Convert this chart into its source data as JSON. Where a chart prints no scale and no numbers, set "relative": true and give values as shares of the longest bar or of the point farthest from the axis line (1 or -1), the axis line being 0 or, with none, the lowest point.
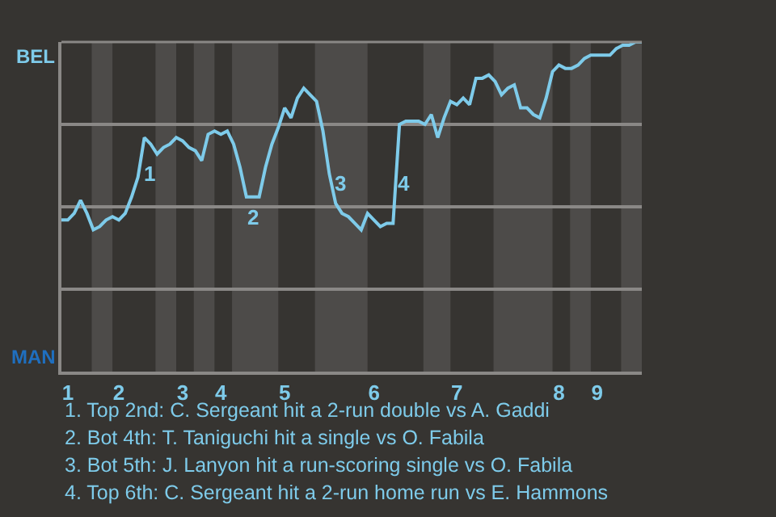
{
  "chart_data": {
    "type": "line",
    "categories": [
      null,
      "1",
      null,
      null,
      null,
      null,
      null,
      null,
      null,
      "2",
      null,
      null,
      null,
      null,
      null,
      null,
      null,
      null,
      null,
      "3",
      null,
      null,
      null,
      null,
      null,
      "4",
      null,
      null,
      null,
      null,
      null,
      null,
      null,
      null,
      null,
      "5",
      null,
      null,
      null,
      null,
      null,
      null,
      null,
      null,
      null,
      null,
      null,
      null,
      null,
      "6",
      null,
      null,
      null,
      null,
      null,
      null,
      null,
      null,
      null,
      null,
      null,
      null,
      "7",
      null,
      null,
      null,
      null,
      null,
      null,
      null,
      null,
      null,
      null,
      null,
      null,
      null,
      null,
      null,
      "8",
      null,
      null,
      null,
      null,
      null,
      "9",
      null,
      null,
      null,
      null,
      null,
      null,
      null
    ],
    "relative": true,
    "series": [
      {
        "color": "#7ecbea",
        "values": [
          0.46,
          0.46,
          0.48,
          0.52,
          0.48,
          0.43,
          0.44,
          0.46,
          0.47,
          0.46,
          0.48,
          0.53,
          0.59,
          0.71,
          0.69,
          0.66,
          0.68,
          0.69,
          0.71,
          0.7,
          0.68,
          0.67,
          0.64,
          0.72,
          0.73,
          0.72,
          0.73,
          0.69,
          0.62,
          0.53,
          0.53,
          0.53,
          0.62,
          0.69,
          0.74,
          0.8,
          0.77,
          0.83,
          0.86,
          0.84,
          0.82,
          0.73,
          0.6,
          0.51,
          0.48,
          0.47,
          0.45,
          0.43,
          0.48,
          0.46,
          0.44,
          0.45,
          0.45,
          0.75,
          0.76,
          0.76,
          0.76,
          0.75,
          0.78,
          0.71,
          0.77,
          0.82,
          0.81,
          0.83,
          0.81,
          0.89,
          0.89,
          0.9,
          0.88,
          0.84,
          0.86,
          0.87,
          0.8,
          0.8,
          0.78,
          0.77,
          0.83,
          0.91,
          0.93,
          0.92,
          0.92,
          0.93,
          0.95,
          0.96,
          0.96,
          0.96,
          0.96,
          0.98,
          0.99,
          0.99,
          1.0,
          1.0
        ]
      }
    ],
    "grid": "y",
    "marker": "none",
    "line_style": "solid",
    "annotations": [
      "1",
      "2",
      "3",
      "4",
      "BEL",
      "MAN",
      "1. Top 2nd: C. Sergeant hit a 2-run double vs A. Gaddi",
      "2. Bot 4th: T. Taniguchi hit a single vs O. Fabila",
      "3. Bot 5th: J. Lanyon hit a run-scoring single vs O. Fabila",
      "4. Top 6th: C. Sergeant hit a 2-run home run vs E. Hammons"
    ]
  }
}
